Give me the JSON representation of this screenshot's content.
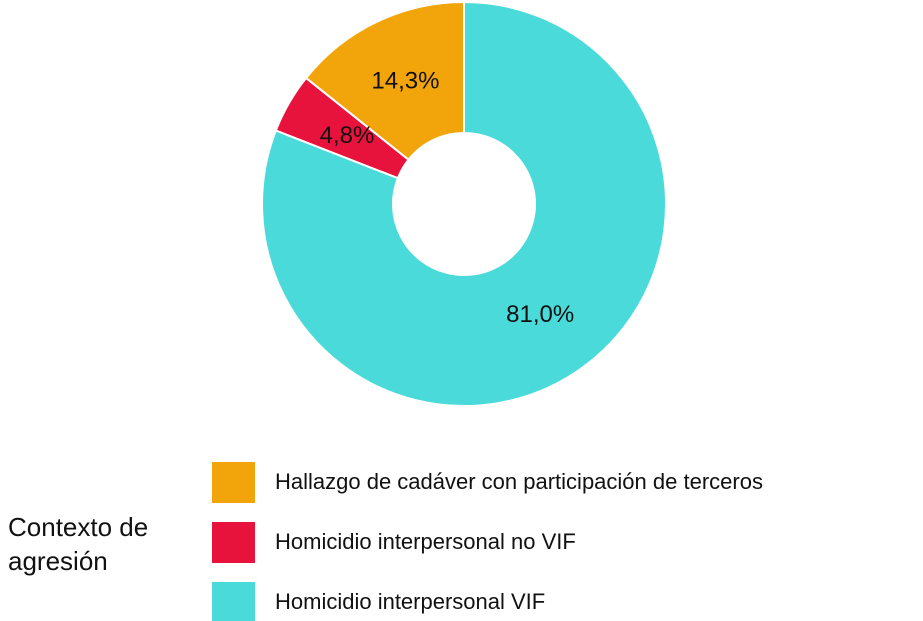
{
  "chart_data": {
    "type": "pie",
    "categories": [
      "Hallazgo de cadáver con participación de terceros",
      "Homicidio interpersonal no VIF",
      "Homicidio interpersonal VIF"
    ],
    "values": [
      14.3,
      4.8,
      81.0
    ],
    "value_labels": [
      "14,3%",
      "4,8%",
      "81,0%"
    ],
    "colors": [
      "#f2a50a",
      "#e8133c",
      "#4adada"
    ],
    "legend_title": "Contexto de agresión",
    "hole": true
  }
}
